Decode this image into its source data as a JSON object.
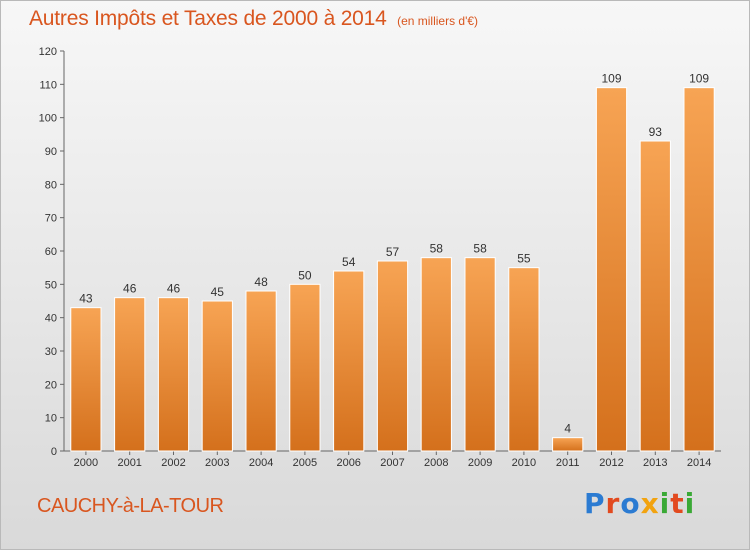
{
  "header": {
    "title": "Autres Impôts et Taxes de 2000 à 2014",
    "subtitle": "(en milliers d'€)"
  },
  "footer": {
    "name": "CAUCHY-à-LA-TOUR"
  },
  "logo": {
    "text": "Proxiti",
    "colors": [
      "#2b7bd2",
      "#e24a1f",
      "#2b7bd2",
      "#f2a30f",
      "#3aa935",
      "#e24a1f",
      "#3aa935"
    ]
  },
  "chart_data": {
    "type": "bar",
    "categories": [
      "2000",
      "2001",
      "2002",
      "2003",
      "2004",
      "2005",
      "2006",
      "2007",
      "2008",
      "2009",
      "2010",
      "2011",
      "2012",
      "2013",
      "2014"
    ],
    "values": [
      43,
      46,
      46,
      45,
      48,
      50,
      54,
      57,
      58,
      58,
      55,
      4,
      109,
      93,
      109
    ],
    "title": "Autres Impôts et Taxes de 2000 à 2014",
    "ylim": [
      0,
      120
    ],
    "yticks": [
      0,
      10,
      20,
      30,
      40,
      50,
      60,
      70,
      80,
      90,
      100,
      110,
      120
    ],
    "grid": false,
    "colors": {
      "bar_top": "#f7a454",
      "bar_bottom": "#d4701c",
      "axis": "#666666"
    }
  }
}
